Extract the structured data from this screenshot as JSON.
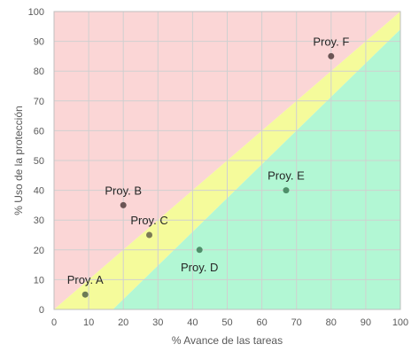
{
  "chart_data": {
    "type": "scatter",
    "xlabel": "% Avance de las tareas",
    "ylabel": "% Uso de la protección",
    "xlim": [
      0,
      100
    ],
    "ylim": [
      0,
      100
    ],
    "xticks": [
      0,
      10,
      20,
      30,
      40,
      50,
      60,
      70,
      80,
      90,
      100
    ],
    "yticks": [
      0,
      10,
      20,
      30,
      40,
      50,
      60,
      70,
      80,
      90,
      100
    ],
    "grid": true,
    "regions": [
      {
        "name": "red",
        "color": "#fbd6d6",
        "polygon": [
          [
            0,
            0
          ],
          [
            0,
            100
          ],
          [
            100,
            100
          ],
          [
            0,
            0
          ]
        ]
      },
      {
        "name": "yellow",
        "color": "#f5fb9b",
        "polygon": [
          [
            0,
            0
          ],
          [
            100,
            100
          ],
          [
            100,
            94
          ],
          [
            17,
            0
          ]
        ]
      },
      {
        "name": "green",
        "color": "#b2f7d4",
        "polygon": [
          [
            17,
            0
          ],
          [
            100,
            94
          ],
          [
            100,
            0
          ]
        ]
      }
    ],
    "points": [
      {
        "label": "Proy. A",
        "x": 9,
        "y": 5,
        "color": "#6b7a55",
        "label_pos": "above"
      },
      {
        "label": "Proy. B",
        "x": 20,
        "y": 35,
        "color": "#6b5555",
        "label_pos": "above"
      },
      {
        "label": "Proy. C",
        "x": 27.5,
        "y": 25,
        "color": "#7a7a55",
        "label_pos": "above"
      },
      {
        "label": "Proy. D",
        "x": 42,
        "y": 20,
        "color": "#4f8f6a",
        "label_pos": "below"
      },
      {
        "label": "Proy. E",
        "x": 67,
        "y": 40,
        "color": "#4f8f6a",
        "label_pos": "above"
      },
      {
        "label": "Proy. F",
        "x": 80,
        "y": 85,
        "color": "#6b5555",
        "label_pos": "above"
      }
    ]
  }
}
